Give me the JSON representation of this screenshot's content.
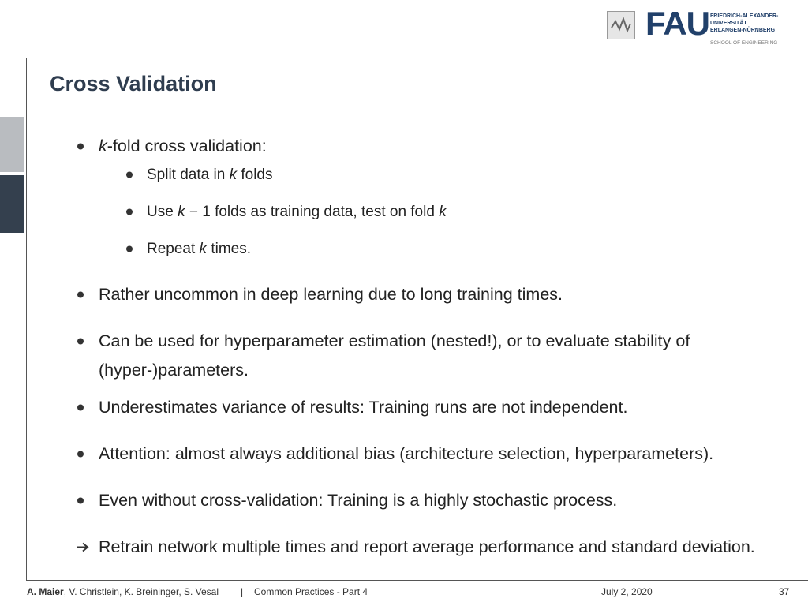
{
  "header": {
    "logo": {
      "abbr": "FAU",
      "lines": [
        "FRIEDRICH-ALEXANDER-",
        "UNIVERSITÄT",
        "ERLANGEN-NÜRNBERG"
      ],
      "school": "SCHOOL OF ENGINEERING"
    }
  },
  "slide": {
    "title": "Cross Validation",
    "items": [
      {
        "marker": "bullet",
        "runs": [
          {
            "text": "k",
            "italic": true
          },
          {
            "text": "-fold cross validation:"
          }
        ],
        "subitems": [
          {
            "runs": [
              {
                "text": "Split data in "
              },
              {
                "text": "k",
                "italic": true
              },
              {
                "text": " folds"
              }
            ]
          },
          {
            "runs": [
              {
                "text": "Use "
              },
              {
                "text": "k",
                "italic": true
              },
              {
                "text": " − 1 folds as training data, test on fold "
              },
              {
                "text": "k",
                "italic": true
              }
            ]
          },
          {
            "runs": [
              {
                "text": "Repeat "
              },
              {
                "text": "k",
                "italic": true
              },
              {
                "text": " times."
              }
            ]
          }
        ]
      },
      {
        "marker": "bullet",
        "runs": [
          {
            "text": "Rather uncommon in deep learning due to long training times."
          }
        ]
      },
      {
        "marker": "bullet",
        "runs": [
          {
            "text": "Can be used for hyperparameter estimation (nested!), or to evaluate stability of (hyper-)parameters."
          }
        ]
      },
      {
        "marker": "bullet",
        "runs": [
          {
            "text": "Underestimates variance of results: Training runs are not independent."
          }
        ]
      },
      {
        "marker": "bullet",
        "runs": [
          {
            "text": "Attention: almost always additional bias (architecture selection, hyperparameters)."
          }
        ]
      },
      {
        "marker": "bullet",
        "runs": [
          {
            "text": "Even without cross-validation: Training is a highly stochastic process."
          }
        ]
      },
      {
        "marker": "arrow",
        "runs": [
          {
            "text": "Retrain network multiple times and report average performance and standard deviation."
          }
        ]
      }
    ]
  },
  "footer": {
    "authors_lead": "A. Maier",
    "authors_rest": ", V. Christlein, K. Breininger, S. Vesal",
    "separator": "|",
    "course": "Common Practices - Part 4",
    "date": "July 2, 2020",
    "page": "37"
  }
}
